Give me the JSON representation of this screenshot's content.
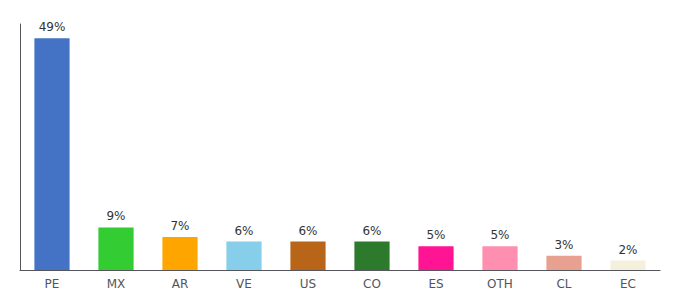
{
  "chart_data": {
    "type": "bar",
    "categories": [
      "PE",
      "MX",
      "AR",
      "VE",
      "US",
      "CO",
      "ES",
      "OTH",
      "CL",
      "EC"
    ],
    "values": [
      49,
      9,
      7,
      6,
      6,
      6,
      5,
      5,
      3,
      2
    ],
    "value_labels": [
      "49%",
      "9%",
      "7%",
      "6%",
      "6%",
      "6%",
      "5%",
      "5%",
      "3%",
      "2%"
    ],
    "colors": [
      "#4472c4",
      "#33cc33",
      "#ffa500",
      "#87ceeb",
      "#b8651a",
      "#2d7a2d",
      "#ff1493",
      "#ff8fb0",
      "#e8a090",
      "#f5f0dc"
    ],
    "ylim": [
      0,
      52
    ],
    "grid": false,
    "data_labels": true,
    "tick_labels": "x"
  }
}
